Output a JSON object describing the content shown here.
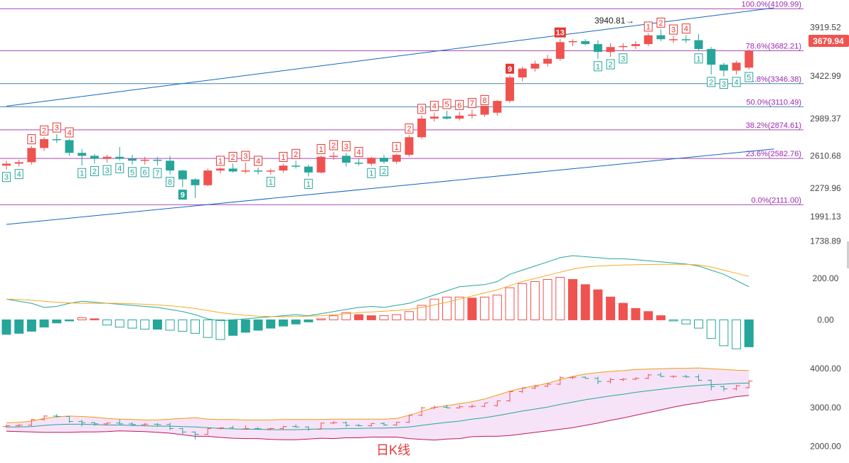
{
  "chart_data": [
    {
      "type": "candlestick",
      "title": "日K线",
      "yaxis_ticks": [
        "3919.52",
        "3422.99",
        "2989.37",
        "2610.68",
        "2279.96",
        "1991.13",
        "1738.89"
      ],
      "ylim": [
        1700,
        4200
      ],
      "last_price": "3679.94",
      "annotations": {
        "high_label": "3940.81"
      },
      "fib_levels": [
        {
          "pct": "100.0%",
          "value": 4109.99,
          "label": "100.0%(4109.99)"
        },
        {
          "pct": "78.6%",
          "value": 3682.21,
          "label": "78.6%(3682.21)"
        },
        {
          "pct": "61.8%",
          "value": 3346.38,
          "label": "61.8%(3346.38)"
        },
        {
          "pct": "50.0%",
          "value": 3110.49,
          "label": "50.0%(3110.49)"
        },
        {
          "pct": "38.2%",
          "value": 2874.61,
          "label": "38.2%(2874.61)"
        },
        {
          "pct": "23.6%",
          "value": 2582.76,
          "label": "23.6%(2582.76)"
        },
        {
          "pct": "0.0%",
          "value": 2111.0,
          "label": "0.0%(2111.00)"
        }
      ],
      "candles": [
        [
          2510,
          2560,
          2470,
          2530
        ],
        [
          2530,
          2570,
          2500,
          2545
        ],
        [
          2545,
          2710,
          2520,
          2690
        ],
        [
          2690,
          2800,
          2660,
          2780
        ],
        [
          2780,
          2830,
          2740,
          2770
        ],
        [
          2770,
          2780,
          2610,
          2640
        ],
        [
          2640,
          2680,
          2510,
          2610
        ],
        [
          2610,
          2630,
          2530,
          2580
        ],
        [
          2580,
          2620,
          2540,
          2600
        ],
        [
          2600,
          2700,
          2560,
          2580
        ],
        [
          2580,
          2620,
          2520,
          2560
        ],
        [
          2560,
          2600,
          2520,
          2570
        ],
        [
          2570,
          2600,
          2510,
          2560
        ],
        [
          2560,
          2610,
          2420,
          2460
        ],
        [
          2460,
          2470,
          2290,
          2370
        ],
        [
          2370,
          2380,
          2180,
          2310
        ],
        [
          2310,
          2480,
          2300,
          2460
        ],
        [
          2460,
          2490,
          2430,
          2480
        ],
        [
          2480,
          2530,
          2440,
          2450
        ],
        [
          2450,
          2540,
          2430,
          2460
        ],
        [
          2460,
          2490,
          2420,
          2450
        ],
        [
          2450,
          2480,
          2420,
          2460
        ],
        [
          2460,
          2530,
          2440,
          2510
        ],
        [
          2510,
          2560,
          2480,
          2500
        ],
        [
          2500,
          2520,
          2400,
          2440
        ],
        [
          2440,
          2610,
          2430,
          2600
        ],
        [
          2600,
          2650,
          2570,
          2610
        ],
        [
          2610,
          2640,
          2500,
          2540
        ],
        [
          2540,
          2580,
          2510,
          2530
        ],
        [
          2530,
          2600,
          2510,
          2590
        ],
        [
          2590,
          2620,
          2530,
          2550
        ],
        [
          2550,
          2630,
          2530,
          2620
        ],
        [
          2620,
          2820,
          2600,
          2800
        ],
        [
          2800,
          3020,
          2780,
          2990
        ],
        [
          2990,
          3050,
          2960,
          3010
        ],
        [
          3010,
          3070,
          2980,
          2990
        ],
        [
          2990,
          3060,
          2970,
          3020
        ],
        [
          3020,
          3080,
          2990,
          3030
        ],
        [
          3030,
          3110,
          3010,
          3120
        ],
        [
          3050,
          3180,
          3020,
          3170
        ],
        [
          3170,
          3430,
          3150,
          3410
        ],
        [
          3410,
          3520,
          3370,
          3500
        ],
        [
          3500,
          3580,
          3470,
          3550
        ],
        [
          3550,
          3640,
          3520,
          3600
        ],
        [
          3600,
          3800,
          3580,
          3770
        ],
        [
          3770,
          3800,
          3730,
          3780
        ],
        [
          3780,
          3800,
          3740,
          3750
        ],
        [
          3750,
          3790,
          3600,
          3670
        ],
        [
          3670,
          3760,
          3620,
          3720
        ],
        [
          3720,
          3760,
          3680,
          3730
        ],
        [
          3730,
          3780,
          3700,
          3750
        ],
        [
          3750,
          3860,
          3730,
          3840
        ],
        [
          3840,
          3900,
          3780,
          3800
        ],
        [
          3800,
          3830,
          3760,
          3800
        ],
        [
          3800,
          3840,
          3760,
          3790
        ],
        [
          3790,
          3850,
          3680,
          3700
        ],
        [
          3700,
          3720,
          3440,
          3540
        ],
        [
          3540,
          3560,
          3420,
          3480
        ],
        [
          3480,
          3580,
          3440,
          3560
        ],
        [
          3510,
          3700,
          3490,
          3680
        ]
      ],
      "td_labels": [
        {
          "i": 0,
          "t": "3",
          "c": "g",
          "p": "below"
        },
        {
          "i": 1,
          "t": "4",
          "c": "g",
          "p": "below"
        },
        {
          "i": 2,
          "t": "1",
          "c": "r",
          "p": "above"
        },
        {
          "i": 3,
          "t": "2",
          "c": "r",
          "p": "above"
        },
        {
          "i": 4,
          "t": "3",
          "c": "r",
          "p": "above"
        },
        {
          "i": 5,
          "t": "4",
          "c": "r",
          "p": "above"
        },
        {
          "i": 6,
          "t": "1",
          "c": "g",
          "p": "below"
        },
        {
          "i": 7,
          "t": "2",
          "c": "g",
          "p": "below"
        },
        {
          "i": 8,
          "t": "3",
          "c": "g",
          "p": "below"
        },
        {
          "i": 9,
          "t": "4",
          "c": "g",
          "p": "below"
        },
        {
          "i": 10,
          "t": "5",
          "c": "g",
          "p": "below"
        },
        {
          "i": 11,
          "t": "6",
          "c": "g",
          "p": "below"
        },
        {
          "i": 12,
          "t": "7",
          "c": "g",
          "p": "below"
        },
        {
          "i": 13,
          "t": "8",
          "c": "g",
          "p": "below"
        },
        {
          "i": 14,
          "t": "9",
          "c": "G",
          "p": "below"
        },
        {
          "i": 17,
          "t": "1",
          "c": "r",
          "p": "above"
        },
        {
          "i": 18,
          "t": "2",
          "c": "r",
          "p": "above"
        },
        {
          "i": 19,
          "t": "3",
          "c": "r",
          "p": "above"
        },
        {
          "i": 20,
          "t": "4",
          "c": "r",
          "p": "above"
        },
        {
          "i": 21,
          "t": "1",
          "c": "g",
          "p": "below"
        },
        {
          "i": 22,
          "t": "1",
          "c": "r",
          "p": "above"
        },
        {
          "i": 23,
          "t": "2",
          "c": "r",
          "p": "above"
        },
        {
          "i": 24,
          "t": "1",
          "c": "g",
          "p": "below"
        },
        {
          "i": 25,
          "t": "1",
          "c": "r",
          "p": "above"
        },
        {
          "i": 26,
          "t": "2",
          "c": "r",
          "p": "above"
        },
        {
          "i": 27,
          "t": "3",
          "c": "r",
          "p": "above"
        },
        {
          "i": 28,
          "t": "4",
          "c": "r",
          "p": "above"
        },
        {
          "i": 29,
          "t": "1",
          "c": "g",
          "p": "below"
        },
        {
          "i": 30,
          "t": "2",
          "c": "g",
          "p": "below"
        },
        {
          "i": 31,
          "t": "1",
          "c": "r",
          "p": "above"
        },
        {
          "i": 32,
          "t": "2",
          "c": "r",
          "p": "above"
        },
        {
          "i": 33,
          "t": "3",
          "c": "r",
          "p": "above"
        },
        {
          "i": 34,
          "t": "4",
          "c": "r",
          "p": "above"
        },
        {
          "i": 35,
          "t": "5",
          "c": "r",
          "p": "above"
        },
        {
          "i": 36,
          "t": "6",
          "c": "r",
          "p": "above"
        },
        {
          "i": 37,
          "t": "7",
          "c": "r",
          "p": "above"
        },
        {
          "i": 38,
          "t": "8",
          "c": "r",
          "p": "above"
        },
        {
          "i": 40,
          "t": "9",
          "c": "R",
          "p": "above"
        },
        {
          "i": 44,
          "t": "13",
          "c": "R",
          "p": "above"
        },
        {
          "i": 47,
          "t": "1",
          "c": "g",
          "p": "below"
        },
        {
          "i": 48,
          "t": "2",
          "c": "g",
          "p": "below"
        },
        {
          "i": 49,
          "t": "3",
          "c": "g",
          "p": "below"
        },
        {
          "i": 51,
          "t": "1",
          "c": "r",
          "p": "above"
        },
        {
          "i": 52,
          "t": "2",
          "c": "r",
          "p": "above"
        },
        {
          "i": 53,
          "t": "3",
          "c": "r",
          "p": "above"
        },
        {
          "i": 54,
          "t": "4",
          "c": "r",
          "p": "above"
        },
        {
          "i": 55,
          "t": "1",
          "c": "g",
          "p": "below"
        },
        {
          "i": 56,
          "t": "2",
          "c": "g",
          "p": "below"
        },
        {
          "i": 57,
          "t": "3",
          "c": "g",
          "p": "below"
        },
        {
          "i": 58,
          "t": "4",
          "c": "g",
          "p": "below"
        },
        {
          "i": 59,
          "t": "5",
          "c": "g",
          "p": "below"
        }
      ],
      "trendlines": [
        {
          "from": [
            0,
            3117
          ],
          "to": [
            61,
            4120
          ]
        },
        {
          "from": [
            0,
            1910
          ],
          "to": [
            61,
            2680
          ]
        }
      ],
      "colors": {
        "up": "#ef5350",
        "down": "#26a69a",
        "fib": "#9c27b0",
        "trend": "#1565c0"
      }
    },
    {
      "type": "macd",
      "yaxis_ticks": [
        "200.00",
        "0.00"
      ],
      "ylim": [
        -170,
        310
      ],
      "hist": [
        -70,
        -65,
        -55,
        -35,
        -15,
        -5,
        10,
        5,
        -25,
        -35,
        -40,
        -45,
        -45,
        -50,
        -55,
        -65,
        -85,
        -95,
        -75,
        -60,
        -50,
        -40,
        -30,
        -20,
        -10,
        5,
        20,
        35,
        25,
        20,
        20,
        25,
        40,
        70,
        100,
        110,
        110,
        105,
        110,
        120,
        155,
        175,
        185,
        195,
        205,
        195,
        170,
        145,
        110,
        80,
        55,
        40,
        20,
        -5,
        -20,
        -40,
        -90,
        -125,
        -140,
        -130
      ],
      "dif": [
        100,
        90,
        80,
        60,
        65,
        80,
        90,
        85,
        80,
        75,
        70,
        65,
        60,
        50,
        40,
        25,
        5,
        -5,
        0,
        5,
        10,
        15,
        20,
        25,
        20,
        30,
        40,
        50,
        60,
        65,
        60,
        70,
        80,
        100,
        120,
        140,
        160,
        165,
        170,
        185,
        220,
        240,
        260,
        280,
        300,
        310,
        305,
        300,
        295,
        295,
        290,
        285,
        280,
        275,
        270,
        260,
        240,
        220,
        190,
        160
      ],
      "dea": [
        100,
        98,
        95,
        90,
        85,
        82,
        80,
        80,
        80,
        80,
        78,
        75,
        72,
        68,
        62,
        55,
        45,
        35,
        28,
        22,
        18,
        16,
        15,
        16,
        18,
        20,
        25,
        30,
        35,
        38,
        42,
        45,
        50,
        60,
        72,
        85,
        100,
        115,
        130,
        145,
        165,
        185,
        200,
        215,
        230,
        245,
        255,
        260,
        262,
        265,
        266,
        267,
        268,
        268,
        268,
        265,
        255,
        240,
        225,
        210
      ],
      "colors": {
        "dif": "#26a69a",
        "dea": "#f9a825"
      }
    },
    {
      "type": "bollinger",
      "yaxis_ticks": [
        "4000.00",
        "3000.00",
        "2000.00"
      ],
      "ylim": [
        1700,
        4350
      ],
      "upper": [
        2610,
        2620,
        2650,
        2720,
        2760,
        2780,
        2770,
        2750,
        2720,
        2700,
        2690,
        2680,
        2680,
        2700,
        2720,
        2740,
        2700,
        2690,
        2690,
        2680,
        2680,
        2680,
        2690,
        2690,
        2690,
        2690,
        2700,
        2700,
        2700,
        2700,
        2700,
        2720,
        2800,
        2900,
        3000,
        3050,
        3100,
        3150,
        3220,
        3320,
        3420,
        3500,
        3560,
        3620,
        3720,
        3800,
        3860,
        3900,
        3930,
        3950,
        3980,
        3990,
        4000,
        4010,
        4010,
        4020,
        4000,
        3980,
        3960,
        3950
      ],
      "mid": [
        2500,
        2500,
        2510,
        2540,
        2560,
        2570,
        2570,
        2560,
        2550,
        2550,
        2540,
        2530,
        2520,
        2520,
        2510,
        2500,
        2480,
        2460,
        2450,
        2440,
        2440,
        2430,
        2430,
        2430,
        2440,
        2450,
        2450,
        2460,
        2460,
        2470,
        2470,
        2480,
        2500,
        2540,
        2580,
        2620,
        2650,
        2700,
        2740,
        2790,
        2850,
        2910,
        2960,
        3010,
        3080,
        3140,
        3200,
        3250,
        3300,
        3340,
        3390,
        3430,
        3470,
        3510,
        3540,
        3570,
        3590,
        3600,
        3620,
        3630
      ],
      "lower": [
        2390,
        2380,
        2370,
        2360,
        2360,
        2360,
        2370,
        2370,
        2380,
        2400,
        2390,
        2380,
        2360,
        2340,
        2300,
        2260,
        2260,
        2230,
        2210,
        2200,
        2200,
        2180,
        2170,
        2170,
        2190,
        2210,
        2200,
        2220,
        2220,
        2240,
        2240,
        2240,
        2200,
        2180,
        2160,
        2190,
        2200,
        2250,
        2260,
        2260,
        2280,
        2320,
        2360,
        2400,
        2440,
        2480,
        2540,
        2600,
        2670,
        2730,
        2800,
        2870,
        2940,
        3010,
        3070,
        3120,
        3180,
        3220,
        3280,
        3310
      ],
      "colors": {
        "upper": "#f39c12",
        "mid": "#26a69a",
        "lower": "#c2185b",
        "fill": "#f3d9f5"
      }
    }
  ]
}
